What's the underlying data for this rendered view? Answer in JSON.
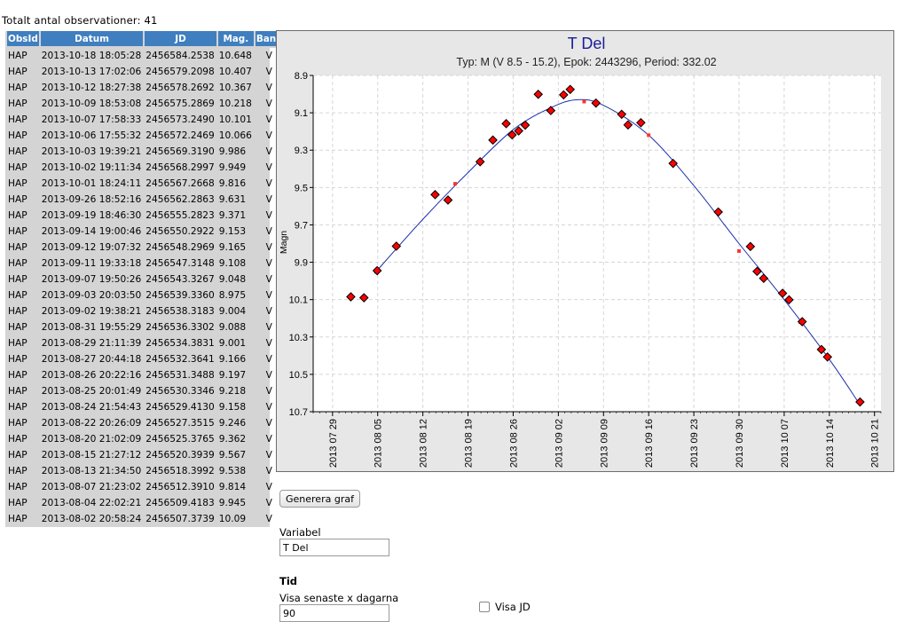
{
  "summary": {
    "total_text": "Totalt antal observationer: 41"
  },
  "table": {
    "headers": [
      "ObsId",
      "Datum",
      "JD",
      "Mag.",
      "Band"
    ],
    "rows": [
      [
        "HAP",
        "2013-10-18 18:05:28",
        "2456584.2538",
        "10.648",
        "V"
      ],
      [
        "HAP",
        "2013-10-13 17:02:06",
        "2456579.2098",
        "10.407",
        "V"
      ],
      [
        "HAP",
        "2013-10-12 18:27:38",
        "2456578.2692",
        "10.367",
        "V"
      ],
      [
        "HAP",
        "2013-10-09 18:53:08",
        "2456575.2869",
        "10.218",
        "V"
      ],
      [
        "HAP",
        "2013-10-07 17:58:33",
        "2456573.2490",
        "10.101",
        "V"
      ],
      [
        "HAP",
        "2013-10-06 17:55:32",
        "2456572.2469",
        "10.066",
        "V"
      ],
      [
        "HAP",
        "2013-10-03 19:39:21",
        "2456569.3190",
        "9.986",
        "V"
      ],
      [
        "HAP",
        "2013-10-02 19:11:34",
        "2456568.2997",
        "9.949",
        "V"
      ],
      [
        "HAP",
        "2013-10-01 18:24:11",
        "2456567.2668",
        "9.816",
        "V"
      ],
      [
        "HAP",
        "2013-09-26 18:52:16",
        "2456562.2863",
        "9.631",
        "V"
      ],
      [
        "HAP",
        "2013-09-19 18:46:30",
        "2456555.2823",
        "9.371",
        "V"
      ],
      [
        "HAP",
        "2013-09-14 19:00:46",
        "2456550.2922",
        "9.153",
        "V"
      ],
      [
        "HAP",
        "2013-09-12 19:07:32",
        "2456548.2969",
        "9.165",
        "V"
      ],
      [
        "HAP",
        "2013-09-11 19:33:18",
        "2456547.3148",
        "9.108",
        "V"
      ],
      [
        "HAP",
        "2013-09-07 19:50:26",
        "2456543.3267",
        "9.048",
        "V"
      ],
      [
        "HAP",
        "2013-09-03 20:03:50",
        "2456539.3360",
        "8.975",
        "V"
      ],
      [
        "HAP",
        "2013-09-02 19:38:21",
        "2456538.3183",
        "9.004",
        "V"
      ],
      [
        "HAP",
        "2013-08-31 19:55:29",
        "2456536.3302",
        "9.088",
        "V"
      ],
      [
        "HAP",
        "2013-08-29 21:11:39",
        "2456534.3831",
        "9.001",
        "V"
      ],
      [
        "HAP",
        "2013-08-27 20:44:18",
        "2456532.3641",
        "9.166",
        "V"
      ],
      [
        "HAP",
        "2013-08-26 20:22:16",
        "2456531.3488",
        "9.197",
        "V"
      ],
      [
        "HAP",
        "2013-08-25 20:01:49",
        "2456530.3346",
        "9.218",
        "V"
      ],
      [
        "HAP",
        "2013-08-24 21:54:43",
        "2456529.4130",
        "9.158",
        "V"
      ],
      [
        "HAP",
        "2013-08-22 20:26:09",
        "2456527.3515",
        "9.246",
        "V"
      ],
      [
        "HAP",
        "2013-08-20 21:02:09",
        "2456525.3765",
        "9.362",
        "V"
      ],
      [
        "HAP",
        "2013-08-15 21:27:12",
        "2456520.3939",
        "9.567",
        "V"
      ],
      [
        "HAP",
        "2013-08-13 21:34:50",
        "2456518.3992",
        "9.538",
        "V"
      ],
      [
        "HAP",
        "2013-08-07 21:23:02",
        "2456512.3910",
        "9.814",
        "V"
      ],
      [
        "HAP",
        "2013-08-04 22:02:21",
        "2456509.4183",
        "9.945",
        "V"
      ],
      [
        "HAP",
        "2013-08-02 20:58:24",
        "2456507.3739",
        "10.09",
        "V"
      ]
    ]
  },
  "chart_data": {
    "type": "scatter",
    "title": "T Del",
    "subtitle": "Typ: M (V 8.5 - 15.2), Epok: 2443296, Period: 332.02",
    "ylabel": "Magn",
    "xlabel": "",
    "y_inverted": true,
    "ylim": [
      8.9,
      10.7
    ],
    "y_ticks": [
      8.9,
      9.1,
      9.3,
      9.5,
      9.7,
      9.9,
      10.1,
      10.3,
      10.5,
      10.7
    ],
    "xlim": [
      "2013-07-26",
      "2013-10-22"
    ],
    "x_ticks": [
      "2013 07 29",
      "2013 08 05",
      "2013 08 12",
      "2013 08 19",
      "2013 08 26",
      "2013 09 02",
      "2013 09 09",
      "2013 09 16",
      "2013 09 23",
      "2013 09 30",
      "2013 10 07",
      "2013 10 14",
      "2013 10 21"
    ],
    "grid": true,
    "series": [
      {
        "marker": "diamond",
        "color": "#ff0000",
        "x": [
          "2013-10-18 18:05:28",
          "2013-10-13 17:02:06",
          "2013-10-12 18:27:38",
          "2013-10-09 18:53:08",
          "2013-10-07 17:58:33",
          "2013-10-06 17:55:32",
          "2013-10-03 19:39:21",
          "2013-10-02 19:11:34",
          "2013-10-01 18:24:11",
          "2013-09-26 18:52:16",
          "2013-09-19 18:46:30",
          "2013-09-14 19:00:46",
          "2013-09-12 19:07:32",
          "2013-09-11 19:33:18",
          "2013-09-07 19:50:26",
          "2013-09-03 20:03:50",
          "2013-09-02 19:38:21",
          "2013-08-31 19:55:29",
          "2013-08-29 21:11:39",
          "2013-08-27 20:44:18",
          "2013-08-26 20:22:16",
          "2013-08-25 20:01:49",
          "2013-08-24 21:54:43",
          "2013-08-22 20:26:09",
          "2013-08-20 21:02:09",
          "2013-08-15 21:27:12",
          "2013-08-13 21:34:50",
          "2013-08-07 21:23:02",
          "2013-08-04 22:02:21",
          "2013-08-02 20:58:24",
          "2013-07-31 20:00:00"
        ],
        "y": [
          10.648,
          10.407,
          10.367,
          10.218,
          10.101,
          10.066,
          9.986,
          9.949,
          9.816,
          9.631,
          9.371,
          9.153,
          9.165,
          9.108,
          9.048,
          8.975,
          9.004,
          9.088,
          9.001,
          9.166,
          9.197,
          9.218,
          9.158,
          9.246,
          9.362,
          9.567,
          9.538,
          9.814,
          9.945,
          10.09,
          10.085
        ]
      },
      {
        "marker": "square",
        "color": "#ff3333",
        "x": [
          "2013-08-17 00:00:00",
          "2013-09-06 00:00:00",
          "2013-09-16 00:00:00",
          "2013-09-30 00:00:00",
          "2013-10-09 12:00:00"
        ],
        "y": [
          9.48,
          9.04,
          9.22,
          9.84,
          10.22
        ]
      },
      {
        "type": "line",
        "color": "#1a2fa8",
        "x": [
          "2013-08-04 12:00:00",
          "2013-08-12 00:00:00",
          "2013-08-19 00:00:00",
          "2013-08-26 00:00:00",
          "2013-09-01 00:00:00",
          "2013-09-05 00:00:00",
          "2013-09-09 00:00:00",
          "2013-09-16 00:00:00",
          "2013-09-23 00:00:00",
          "2013-09-30 00:00:00",
          "2013-10-07 00:00:00",
          "2013-10-14 00:00:00",
          "2013-10-18 12:00:00"
        ],
        "y": [
          9.96,
          9.67,
          9.42,
          9.19,
          9.07,
          9.03,
          9.06,
          9.22,
          9.49,
          9.8,
          10.1,
          10.42,
          10.65
        ]
      }
    ]
  },
  "controls": {
    "generate_label": "Generera graf",
    "variable_label": "Variabel",
    "variable_value": "T Del",
    "time_heading": "Tid",
    "days_label": "Visa senaste x dagarna",
    "days_value": "90",
    "jd_label": "Visa JD",
    "jd_checked": false
  }
}
